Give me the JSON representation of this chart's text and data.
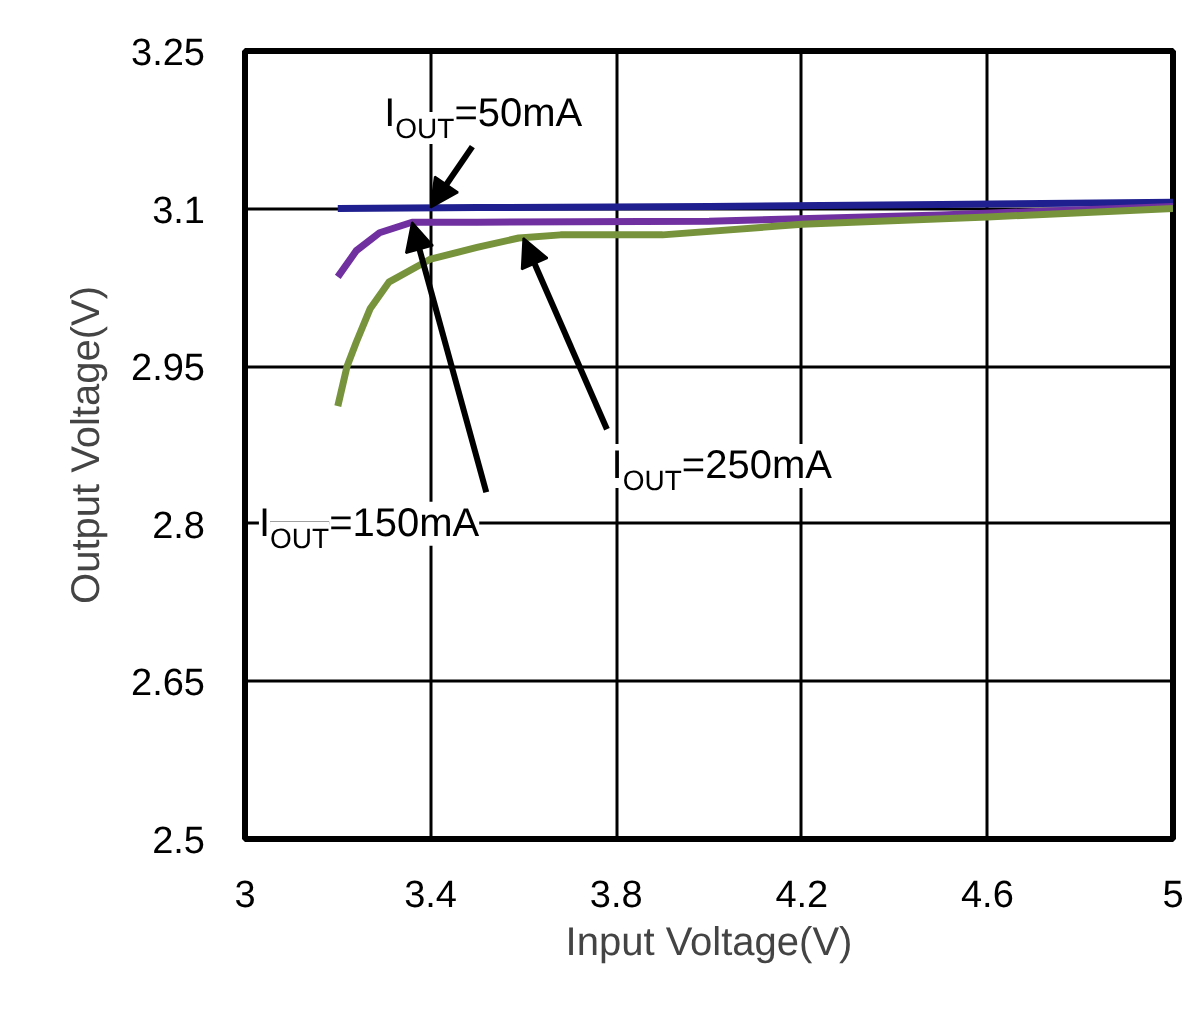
{
  "chart_data": {
    "type": "line",
    "xlabel": "Input Voltage(V)",
    "ylabel": "Output Voltage(V)",
    "xlim": [
      3,
      5
    ],
    "xticks": [
      3,
      3.4,
      3.8,
      4.2,
      4.6,
      5
    ],
    "ylim": [
      2.5,
      3.25
    ],
    "yticks": [
      2.5,
      2.65,
      2.8,
      2.95,
      3.1,
      3.25
    ],
    "grid": true,
    "series": [
      {
        "color": "#1f1f8f",
        "x": [
          3.2,
          3.5,
          4.0,
          4.5,
          5.0
        ],
        "values": [
          3.1,
          3.101,
          3.102,
          3.104,
          3.106
        ]
      },
      {
        "color": "#7030a0",
        "x": [
          3.2,
          3.24,
          3.29,
          3.36,
          3.5,
          4.0,
          4.5,
          5.0
        ],
        "values": [
          3.035,
          3.06,
          3.077,
          3.087,
          3.087,
          3.088,
          3.094,
          3.102
        ]
      },
      {
        "color": "#77933c",
        "x": [
          3.2,
          3.22,
          3.24,
          3.27,
          3.31,
          3.4,
          3.5,
          3.59,
          3.68,
          3.9,
          4.2,
          4.6,
          5.0
        ],
        "values": [
          2.912,
          2.95,
          2.973,
          3.005,
          3.03,
          3.052,
          3.063,
          3.072,
          3.075,
          3.075,
          3.085,
          3.092,
          3.1
        ]
      }
    ],
    "annotations": [
      {
        "text": "I$_{OUT}$=50mA",
        "x": 3.4,
        "y": 3.101
      },
      {
        "text": "I$_{OUT}$=150mA",
        "x": 3.36,
        "y": 3.087
      },
      {
        "text": "I$_{OUT}$=250mA",
        "x": 3.6,
        "y": 3.072
      }
    ]
  }
}
